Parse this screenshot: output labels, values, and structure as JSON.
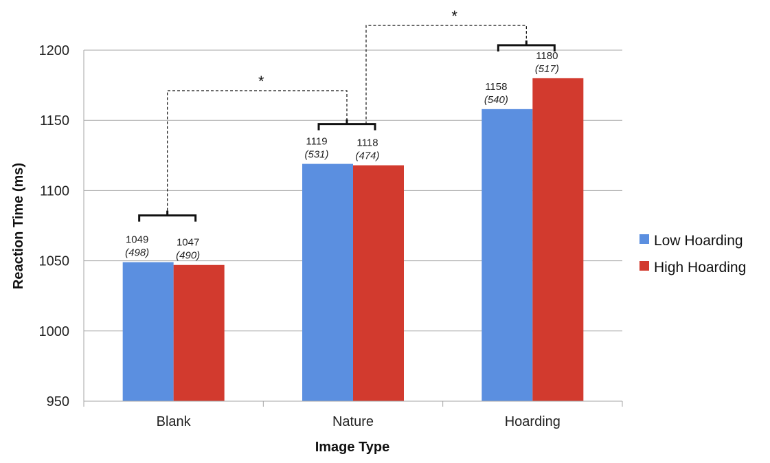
{
  "chart_data": {
    "type": "bar",
    "categories": [
      "Blank",
      "Nature",
      "Hoarding"
    ],
    "series": [
      {
        "name": "Low Hoarding",
        "values": [
          1049,
          1119,
          1158
        ],
        "sd": [
          "(498)",
          "(531)",
          "(540)"
        ],
        "color": "#5b8fe0"
      },
      {
        "name": "High Hoarding",
        "values": [
          1047,
          1118,
          1180
        ],
        "sd": [
          "(490)",
          "(474)",
          "(517)"
        ],
        "color": "#d23a2e"
      }
    ],
    "value_labels": [
      [
        "1049",
        "1119",
        "1158"
      ],
      [
        "1047",
        "1118",
        "1180"
      ]
    ],
    "xlabel": "Image Type",
    "ylabel": "Reaction Time (ms)",
    "ylim": [
      950,
      1200
    ],
    "yticks": [
      "950",
      "1000",
      "1050",
      "1100",
      "1150",
      "1200"
    ],
    "grid": true,
    "legend_position": "right",
    "annotations": [
      {
        "text": "*",
        "between": [
          "Blank",
          "Nature"
        ]
      },
      {
        "text": "*",
        "between": [
          "Nature",
          "Hoarding"
        ]
      }
    ]
  }
}
